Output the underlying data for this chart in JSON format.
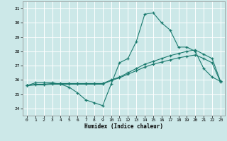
{
  "xlabel": "Humidex (Indice chaleur)",
  "bg_color": "#cce8e8",
  "grid_color": "#ffffff",
  "line_color": "#1a7a6e",
  "xlim": [
    -0.5,
    23.5
  ],
  "ylim": [
    23.5,
    31.5
  ],
  "yticks": [
    24,
    25,
    26,
    27,
    28,
    29,
    30,
    31
  ],
  "xticks": [
    0,
    1,
    2,
    3,
    4,
    5,
    6,
    7,
    8,
    9,
    10,
    11,
    12,
    13,
    14,
    15,
    16,
    17,
    18,
    19,
    20,
    21,
    22,
    23
  ],
  "series1_x": [
    0,
    1,
    2,
    3,
    4,
    5,
    6,
    7,
    8,
    9,
    10,
    11,
    12,
    13,
    14,
    15,
    16,
    17,
    18,
    19,
    20,
    21,
    22,
    23
  ],
  "series1_y": [
    25.6,
    25.8,
    25.8,
    25.8,
    25.7,
    25.5,
    25.1,
    24.6,
    24.4,
    24.2,
    25.7,
    27.2,
    27.5,
    28.7,
    30.6,
    30.7,
    30.0,
    29.5,
    28.3,
    28.3,
    28.0,
    26.8,
    26.2,
    25.9
  ],
  "series2_x": [
    0,
    1,
    2,
    3,
    4,
    5,
    6,
    7,
    8,
    9,
    10,
    11,
    12,
    13,
    14,
    15,
    16,
    17,
    18,
    19,
    20,
    21,
    22,
    23
  ],
  "series2_y": [
    25.6,
    25.7,
    25.7,
    25.75,
    25.75,
    25.75,
    25.75,
    25.75,
    25.75,
    25.75,
    26.0,
    26.2,
    26.5,
    26.8,
    27.1,
    27.3,
    27.5,
    27.7,
    27.85,
    28.0,
    28.1,
    27.8,
    27.5,
    25.9
  ],
  "series3_x": [
    0,
    1,
    2,
    3,
    4,
    5,
    6,
    7,
    8,
    9,
    10,
    11,
    12,
    13,
    14,
    15,
    16,
    17,
    18,
    19,
    20,
    21,
    22,
    23
  ],
  "series3_y": [
    25.6,
    25.65,
    25.65,
    25.7,
    25.7,
    25.7,
    25.7,
    25.7,
    25.7,
    25.7,
    25.95,
    26.15,
    26.4,
    26.65,
    26.9,
    27.1,
    27.25,
    27.4,
    27.55,
    27.65,
    27.75,
    27.5,
    27.2,
    25.85
  ]
}
